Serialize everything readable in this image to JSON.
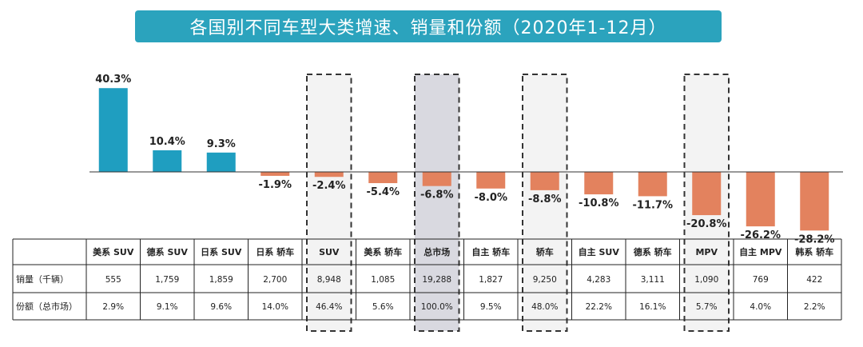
{
  "title": "各国别不同车型大类增速、销量和份额（2020年1-12月）",
  "colors": {
    "positive": "#1f9ec0",
    "negative": "#e3825e",
    "banner": "#2ba3bd",
    "highlight_gray": "#d9d9e0",
    "highlight_light": "#f3f3f3"
  },
  "chart_data": {
    "type": "bar",
    "categories": [
      "美系 SUV",
      "德系 SUV",
      "日系 SUV",
      "日系 轿车",
      "SUV",
      "美系 轿车",
      "总市场",
      "自主 轿车",
      "轿车",
      "自主 SUV",
      "德系 轿车",
      "MPV",
      "自主 MPV",
      "韩系 轿车"
    ],
    "values": [
      40.3,
      10.4,
      9.3,
      -1.9,
      -2.4,
      -5.4,
      -6.8,
      -8.0,
      -8.8,
      -10.8,
      -11.7,
      -20.8,
      -26.2,
      -28.2
    ],
    "value_labels": [
      "40.3%",
      "10.4%",
      "9.3%",
      "-1.9%",
      "-2.4%",
      "-5.4%",
      "-6.8%",
      "-8.0%",
      "-8.8%",
      "-10.8%",
      "-11.7%",
      "-20.8%",
      "-26.2%",
      "-28.2%"
    ],
    "highlighted": [
      "SUV",
      "总市场",
      "轿车",
      "MPV"
    ],
    "table": {
      "row_headers": [
        "销量（千辆）",
        "份额（总市场）"
      ],
      "sales": [
        "555",
        "1,759",
        "1,859",
        "2,700",
        "8,948",
        "1,085",
        "19,288",
        "1,827",
        "9,250",
        "4,283",
        "3,111",
        "1,090",
        "769",
        "422"
      ],
      "share": [
        "2.9%",
        "9.1%",
        "9.6%",
        "14.0%",
        "46.4%",
        "5.6%",
        "100.0%",
        "9.5%",
        "48.0%",
        "22.2%",
        "16.1%",
        "5.7%",
        "4.0%",
        "2.2%"
      ]
    }
  }
}
